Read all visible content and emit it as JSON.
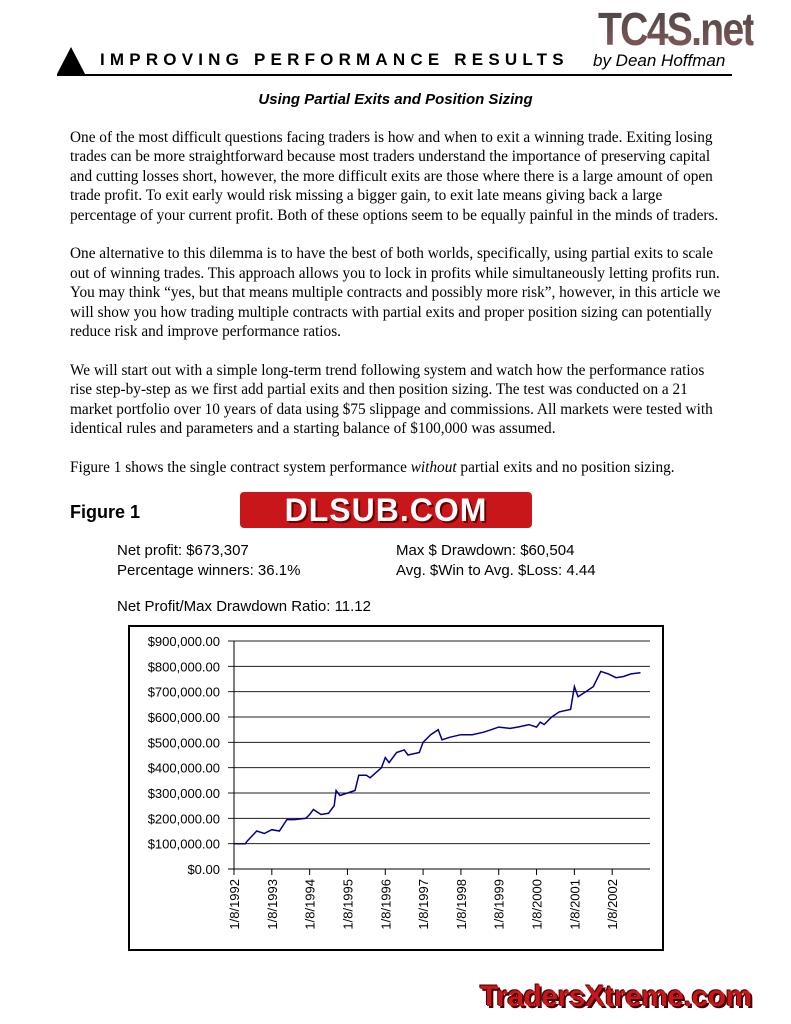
{
  "logos": {
    "top_right": "TC4S.net",
    "figure": "DLSUB.COM",
    "bottom": "TradersXtreme.com"
  },
  "header": {
    "title": "IMPROVING PERFORMANCE RESULTS",
    "byline": "by Dean Hoffman"
  },
  "subtitle": "Using Partial Exits and Position Sizing",
  "paragraphs": [
    "One of the most difficult questions facing traders is how and when to exit a winning trade. Exiting losing trades can be more straightforward because most traders understand the importance of preserving capital and cutting losses short, however, the more difficult exits are those where there is a large amount of open trade profit. To exit early would risk missing a bigger gain, to exit late means giving back a large percentage of your current profit. Both of these options seem to be equally painful in the minds of traders.",
    "One alternative to this dilemma is to have the best of both worlds, specifically, using partial exits to scale out of winning trades. This approach allows you to lock in profits while simultaneously letting profits run. You may think “yes, but that means multiple contracts and possibly more risk”, however, in this article we will show you how trading multiple contracts with partial exits and proper position sizing can potentially reduce risk and improve performance ratios.",
    "We will start out with a simple long-term trend following system and watch how the performance ratios rise step-by-step as we first add partial exits and then position sizing. The test was conducted on a 21 market portfolio over 10 years of data using $75 slippage and commissions. All markets were tested with identical rules and parameters and a starting balance of $100,000 was assumed."
  ],
  "para4": {
    "before": "Figure 1 shows the single contract system performance ",
    "italic": "without",
    "after": " partial exits and no position sizing."
  },
  "figure": {
    "label": "Figure 1",
    "stats": {
      "net_profit": "Net profit: $673,307",
      "max_drawdown": "Max $ Drawdown: $60,504",
      "pct_winners": "Percentage winners: 36.1%",
      "win_loss": "Avg. $Win to Avg. $Loss: 4.44",
      "ratio": "Net Profit/Max Drawdown Ratio: 11.12"
    }
  },
  "chart_data": {
    "type": "line",
    "ylim": [
      0,
      900000
    ],
    "y_ticks": [
      "$0.00",
      "$100,000.00",
      "$200,000.00",
      "$300,000.00",
      "$400,000.00",
      "$500,000.00",
      "$600,000.00",
      "$700,000.00",
      "$800,000.00",
      "$900,000.00"
    ],
    "x_ticks": [
      "1/8/1992",
      "1/8/1993",
      "1/8/1994",
      "1/8/1995",
      "1/8/1996",
      "1/8/1997",
      "1/8/1998",
      "1/8/1999",
      "1/8/2000",
      "1/8/2001",
      "1/8/2002"
    ],
    "grid": true,
    "line_color": "#00008b",
    "series": [
      {
        "x": [
          1992.0,
          1992.3,
          1992.35,
          1992.6,
          1992.8,
          1993.0,
          1993.2,
          1993.4,
          1993.6,
          1993.9,
          1994.0,
          1994.1,
          1994.3,
          1994.5,
          1994.65,
          1994.7,
          1994.8,
          1995.0,
          1995.2,
          1995.3,
          1995.5,
          1995.6,
          1995.9,
          1996.0,
          1996.1,
          1996.3,
          1996.5,
          1996.6,
          1996.9,
          1997.0,
          1997.2,
          1997.4,
          1997.5,
          1997.7,
          1998.0,
          1998.3,
          1998.6,
          1998.8,
          1999.0,
          1999.3,
          1999.5,
          1999.8,
          2000.0,
          2000.1,
          2000.2,
          2000.4,
          2000.6,
          2000.9,
          2001.0,
          2001.1,
          2001.3,
          2001.5,
          2001.7,
          2001.9,
          2002.1,
          2002.3,
          2002.5,
          2002.75
        ],
        "y": [
          100000,
          100000,
          110000,
          150000,
          140000,
          155000,
          150000,
          195000,
          195000,
          200000,
          215000,
          235000,
          215000,
          220000,
          250000,
          310000,
          290000,
          300000,
          310000,
          370000,
          370000,
          360000,
          400000,
          440000,
          420000,
          460000,
          470000,
          450000,
          460000,
          500000,
          530000,
          550000,
          510000,
          520000,
          530000,
          530000,
          540000,
          550000,
          560000,
          555000,
          560000,
          570000,
          560000,
          580000,
          570000,
          600000,
          620000,
          630000,
          720000,
          680000,
          700000,
          720000,
          780000,
          770000,
          755000,
          760000,
          770000,
          775000
        ]
      }
    ]
  }
}
